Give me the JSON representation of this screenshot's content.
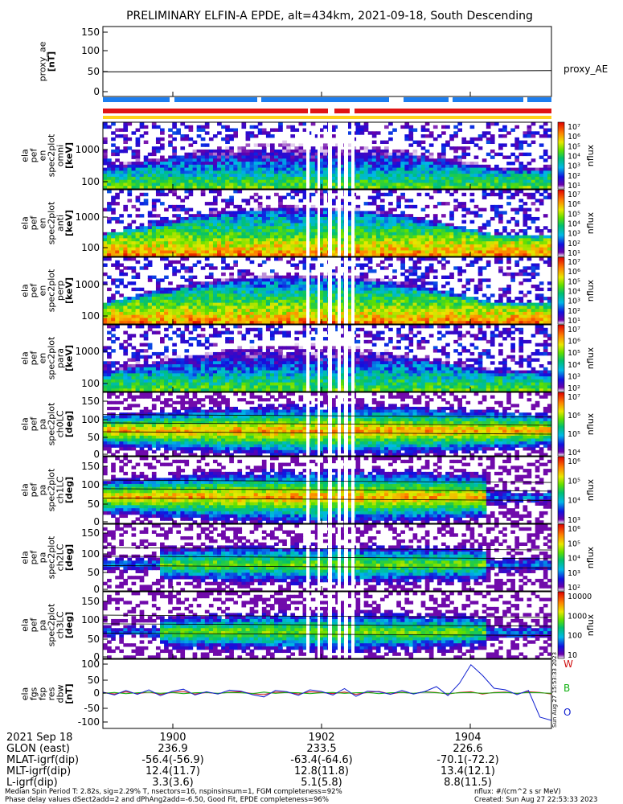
{
  "chart_data": {
    "type": "heatmap",
    "title": "PRELIMINARY ELFIN-A EPDE, alt=434km, 2021-09-18, South Descending",
    "x_range": [
      "1859.3",
      "1905.1"
    ],
    "x_ticks": [
      {
        "t": 1900,
        "label": "1900"
      },
      {
        "t": 1902,
        "label": "1902"
      },
      {
        "t": 1904,
        "label": "1904"
      }
    ],
    "ephemeris": {
      "date_label": "2021 Sep 18",
      "rows": [
        {
          "label": "GLON (east)",
          "values": [
            "236.9",
            "233.5",
            "226.6"
          ]
        },
        {
          "label": "MLAT-igrf(dip)",
          "values": [
            "-56.4(-56.9)",
            "-63.4(-64.6)",
            "-70.1(-72.2)"
          ]
        },
        {
          "label": "MLT-igrf(dip)",
          "values": [
            "12.4(11.7)",
            "12.8(11.8)",
            "13.4(12.1)"
          ]
        },
        {
          "label": "L-igrf(dip)",
          "values": [
            "3.3(3.6)",
            "5.1(5.8)",
            "8.8(11.5)"
          ]
        }
      ]
    },
    "panels": [
      {
        "name": "proxy_ae",
        "kind": "line",
        "ylabel": [
          "proxy_ae",
          "[nT]"
        ],
        "y_ticks": [
          "150",
          "100",
          "50",
          "0"
        ],
        "ylim": [
          -10,
          155
        ],
        "series_label": "proxy_AE",
        "values": [
          48,
          48.5,
          49,
          49.5,
          50,
          50,
          50,
          50,
          50.5,
          51
        ]
      },
      {
        "name": "en-spec-omni",
        "kind": "spectrogram",
        "ylabel": [
          "ela",
          "pef",
          "en",
          "spec2plot",
          "omni",
          "[keV]"
        ],
        "y_ticks": [
          "1000",
          "100"
        ],
        "zlabel": "nflux",
        "z_ticks": [
          "10⁷",
          "10⁶",
          "10⁵",
          "10⁴",
          "10³",
          "10²",
          "10¹"
        ]
      },
      {
        "name": "en-spec-anti",
        "kind": "spectrogram",
        "ylabel": [
          "ela",
          "pef",
          "en",
          "spec2plot",
          "anti",
          "[keV]"
        ],
        "y_ticks": [
          "1000",
          "100"
        ],
        "zlabel": "nflux",
        "z_ticks": [
          "10⁷",
          "10⁶",
          "10⁵",
          "10⁴",
          "10³",
          "10²",
          "10¹"
        ]
      },
      {
        "name": "en-spec-perp",
        "kind": "spectrogram",
        "ylabel": [
          "ela",
          "pef",
          "en",
          "spec2plot",
          "perp",
          "[keV]"
        ],
        "y_ticks": [
          "1000",
          "100"
        ],
        "zlabel": "nflux",
        "z_ticks": [
          "10⁷",
          "10⁶",
          "10⁵",
          "10⁴",
          "10³",
          "10²",
          "10¹"
        ]
      },
      {
        "name": "en-spec-para",
        "kind": "spectrogram",
        "ylabel": [
          "ela",
          "pef",
          "en",
          "spec2plot",
          "para",
          "[keV]"
        ],
        "y_ticks": [
          "1000",
          "100"
        ],
        "zlabel": "nflux",
        "z_ticks": [
          "10⁷",
          "10⁶",
          "10⁵",
          "10⁴",
          "10³",
          "10²"
        ]
      },
      {
        "name": "pa-ch0LC",
        "kind": "spectrogram",
        "ylabel": [
          "ela",
          "pef",
          "pa",
          "spec2plot",
          "ch0LC",
          "[deg]"
        ],
        "y_ticks": [
          "150",
          "100",
          "50",
          "0"
        ],
        "zlabel": "nflux",
        "z_ticks": [
          "10⁷",
          "10⁶",
          "10⁵",
          "10⁴"
        ]
      },
      {
        "name": "pa-ch1LC",
        "kind": "spectrogram",
        "ylabel": [
          "ela",
          "pef",
          "pa",
          "spec2plot",
          "ch1LC",
          "[deg]"
        ],
        "y_ticks": [
          "150",
          "100",
          "50",
          "0"
        ],
        "zlabel": "nflux",
        "z_ticks": [
          "10⁶",
          "10⁵",
          "10⁴",
          "10³"
        ]
      },
      {
        "name": "pa-ch2LC",
        "kind": "spectrogram",
        "ylabel": [
          "ela",
          "pef",
          "pa",
          "spec2plot",
          "ch2LC",
          "[deg]"
        ],
        "y_ticks": [
          "150",
          "100",
          "50",
          "0"
        ],
        "zlabel": "nflux",
        "z_ticks": [
          "10⁶",
          "10⁵",
          "10⁴",
          "10³",
          "10²"
        ]
      },
      {
        "name": "pa-ch3LC",
        "kind": "spectrogram",
        "ylabel": [
          "ela",
          "pef",
          "pa",
          "spec2plot",
          "ch3LC",
          "[deg]"
        ],
        "y_ticks": [
          "150",
          "100",
          "50",
          "0"
        ],
        "zlabel": "nflux",
        "z_ticks": [
          "10000",
          "1000",
          "100",
          "10"
        ]
      },
      {
        "name": "fgs-res",
        "kind": "line",
        "ylabel": [
          "ela",
          "fgs",
          "fsp",
          "res",
          "dbw",
          "[nT]"
        ],
        "y_ticks": [
          "100",
          "50",
          "0",
          "-50",
          "-100"
        ],
        "ylim": [
          -110,
          105
        ],
        "series": [
          {
            "name": "W",
            "color": "#d01010",
            "values": [
              2,
              -3,
              4,
              -2,
              3,
              -4,
              2,
              5,
              -3,
              2,
              -2,
              3,
              4,
              -2,
              -5,
              3,
              2,
              -3,
              4,
              2,
              -2,
              3,
              -4,
              2,
              5,
              -3,
              3,
              -2,
              4,
              2,
              -3,
              2,
              4,
              -3,
              2,
              3,
              -2,
              4,
              2,
              -3
            ]
          },
          {
            "name": "B",
            "color": "#10b010",
            "values": [
              -1,
              2,
              -2,
              1,
              3,
              -1,
              2,
              -2,
              1,
              2,
              -1,
              2,
              1,
              -2,
              3,
              -1,
              2,
              1,
              -2,
              1,
              2,
              -1,
              1,
              2,
              -2,
              1,
              2,
              -1,
              3,
              1,
              -2,
              1,
              2,
              -1,
              1,
              2,
              -1,
              2,
              1,
              -1
            ]
          },
          {
            "name": "O",
            "color": "#1020d0",
            "values": [
              3,
              -6,
              8,
              -4,
              10,
              -8,
              5,
              12,
              -6,
              4,
              -3,
              9,
              6,
              -5,
              -12,
              8,
              4,
              -7,
              10,
              5,
              -6,
              14,
              -10,
              6,
              4,
              -4,
              8,
              -3,
              5,
              20,
              -8,
              30,
              88,
              55,
              15,
              10,
              -5,
              8,
              -75,
              -85
            ]
          }
        ]
      }
    ],
    "footer": {
      "left1": "Median Spin Period T: 2.82s, sig=2.29% T, nsectors=16, nspinsinsum=1, FGM completeness=92%",
      "left2": "Phase delay values dSect2add=2 and dPhAng2add=-6.50, Good Fit, EPDE completeness=96%",
      "right1": "nflux: #/(cm^2 s sr MeV)",
      "right2": "Created: Sun Aug 27 22:53:33 2023",
      "vertical_stamp": "Sun Aug 27 15:53:33 2023"
    }
  }
}
